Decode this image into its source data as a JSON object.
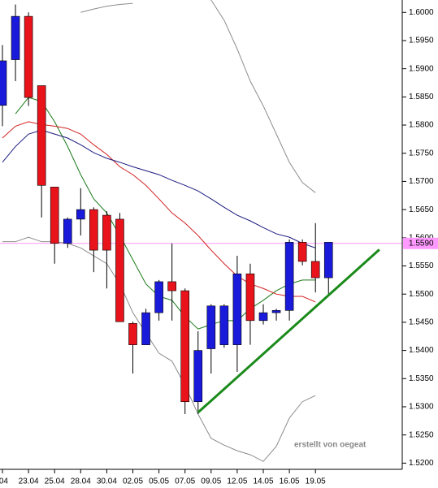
{
  "chart_data": {
    "type": "candlestick",
    "categories": [
      ".04",
      null,
      "23.04",
      null,
      "25.04",
      null,
      "28.04",
      null,
      "30.04",
      null,
      "02.05",
      null,
      "05.05",
      null,
      "07.05",
      null,
      "09.05",
      null,
      "12.05",
      null,
      "14.05",
      null,
      "16.05",
      null,
      "19.05",
      null
    ],
    "open": [
      1.5835,
      1.5916,
      1.5993,
      1.587,
      1.569,
      1.559,
      1.5633,
      1.565,
      1.564,
      1.5633,
      1.5448,
      1.541,
      1.5467,
      1.5522,
      1.5506,
      1.5309,
      1.5403,
      1.541,
      1.541,
      1.5536,
      1.5453,
      1.5467,
      1.5471,
      1.5592,
      1.5558,
      1.5529
    ],
    "high": [
      1.5942,
      1.6014,
      1.6,
      1.587,
      1.569,
      1.5636,
      1.5688,
      1.5654,
      1.5647,
      1.5644,
      1.5451,
      1.5474,
      1.5525,
      1.559,
      1.551,
      1.5434,
      1.5482,
      1.5482,
      1.5568,
      1.5554,
      1.5482,
      1.5474,
      1.5597,
      1.5597,
      1.5626,
      1.5592
    ],
    "low": [
      1.5798,
      1.5878,
      1.5834,
      1.5636,
      1.5554,
      1.5582,
      1.5604,
      1.5539,
      1.551,
      1.5451,
      1.5359,
      1.541,
      1.5453,
      1.5453,
      1.5287,
      1.5287,
      1.5359,
      1.5405,
      1.5362,
      1.541,
      1.5446,
      1.5453,
      1.5453,
      1.5551,
      1.5503,
      1.55
    ],
    "close": [
      1.5914,
      1.5993,
      1.5849,
      1.5693,
      1.559,
      1.5633,
      1.565,
      1.5578,
      1.5578,
      1.5451,
      1.541,
      1.5467,
      1.5522,
      1.5506,
      1.5309,
      1.54,
      1.5479,
      1.5479,
      1.5536,
      1.5453,
      1.5467,
      1.5471,
      1.5592,
      1.5558,
      1.5529,
      1.5592
    ],
    "up_color": "#1a1adb",
    "down_color": "#e8131b",
    "overlays": [
      {
        "color": "#8c8c8c",
        "values": [
          null,
          null,
          null,
          null,
          null,
          null,
          1.6,
          1.6006,
          1.6011,
          1.6014,
          1.6016,
          null,
          null,
          null,
          null,
          null,
          1.6022,
          1.5986,
          1.5935,
          1.5878,
          1.5834,
          1.5784,
          1.5734,
          1.5698,
          1.568,
          null
        ]
      },
      {
        "color": "#8c8c8c",
        "values": [
          1.5593,
          1.5593,
          1.5601,
          1.5593,
          1.5593,
          1.559,
          1.5582,
          1.5568,
          1.5554,
          1.5518,
          1.5467,
          1.5431,
          1.5395,
          1.5381,
          1.5338,
          1.5287,
          1.5244,
          1.5232,
          1.5222,
          1.5215,
          1.5203,
          1.523,
          1.528,
          1.5309,
          1.532,
          null
        ]
      },
      {
        "color": "#1a7a1a",
        "values": [
          null,
          1.582,
          1.5849,
          1.5842,
          1.5806,
          1.5762,
          1.5712,
          1.5669,
          1.5644,
          1.5604,
          1.5561,
          1.5518,
          1.5496,
          1.5489,
          1.546,
          1.5438,
          1.5446,
          1.5453,
          1.5453,
          1.5474,
          1.5489,
          1.5506,
          1.5518,
          1.5525,
          1.5525,
          null
        ]
      },
      {
        "color": "#d42020",
        "values": [
          1.5777,
          1.5798,
          1.5806,
          1.5801,
          1.5798,
          1.5794,
          1.5784,
          1.5765,
          1.5748,
          1.5726,
          1.5712,
          1.5693,
          1.5669,
          1.5644,
          1.5626,
          1.5604,
          1.5578,
          1.5554,
          1.5532,
          1.5518,
          1.551,
          1.55,
          1.5496,
          1.5496,
          1.5486,
          null
        ]
      },
      {
        "color": "#1a1a80",
        "values": [
          1.5734,
          1.5762,
          1.5784,
          1.5791,
          1.5784,
          1.5777,
          1.5765,
          1.5751,
          1.5741,
          1.5734,
          1.5726,
          1.5719,
          1.5712,
          1.5702,
          1.5693,
          1.5683,
          1.5669,
          1.5654,
          1.564,
          1.563,
          1.5618,
          1.5607,
          1.5601,
          1.559,
          1.5582,
          null
        ]
      }
    ],
    "hline": {
      "value": 1.559,
      "label": "1.5590",
      "color": "#ff99ff"
    },
    "trendline": {
      "x": [
        15,
        28.9
      ],
      "y": [
        1.529,
        1.5579
      ],
      "color": "#1a8a1a"
    },
    "annotation": "erstellt von oegeat",
    "ylim": [
      1.5189,
      1.6022
    ],
    "yticks": [
      {
        "value": 1.52,
        "label": "1.5200"
      },
      {
        "value": 1.525,
        "label": "1.5250"
      },
      {
        "value": 1.53,
        "label": "1.5300"
      },
      {
        "value": 1.535,
        "label": "1.5350"
      },
      {
        "value": 1.54,
        "label": "1.5400"
      },
      {
        "value": 1.545,
        "label": "1.5450"
      },
      {
        "value": 1.55,
        "label": "1.5500"
      },
      {
        "value": 1.555,
        "label": "1.5550"
      },
      {
        "value": 1.56,
        "label": "1.5600"
      },
      {
        "value": 1.565,
        "label": "1.5650"
      },
      {
        "value": 1.57,
        "label": "1.5700"
      },
      {
        "value": 1.575,
        "label": "1.5750"
      },
      {
        "value": 1.58,
        "label": "1.5800"
      },
      {
        "value": 1.585,
        "label": "1.5850"
      },
      {
        "value": 1.59,
        "label": "1.5900"
      },
      {
        "value": 1.595,
        "label": "1.5950"
      },
      {
        "value": 1.6,
        "label": "1.6000"
      }
    ]
  }
}
